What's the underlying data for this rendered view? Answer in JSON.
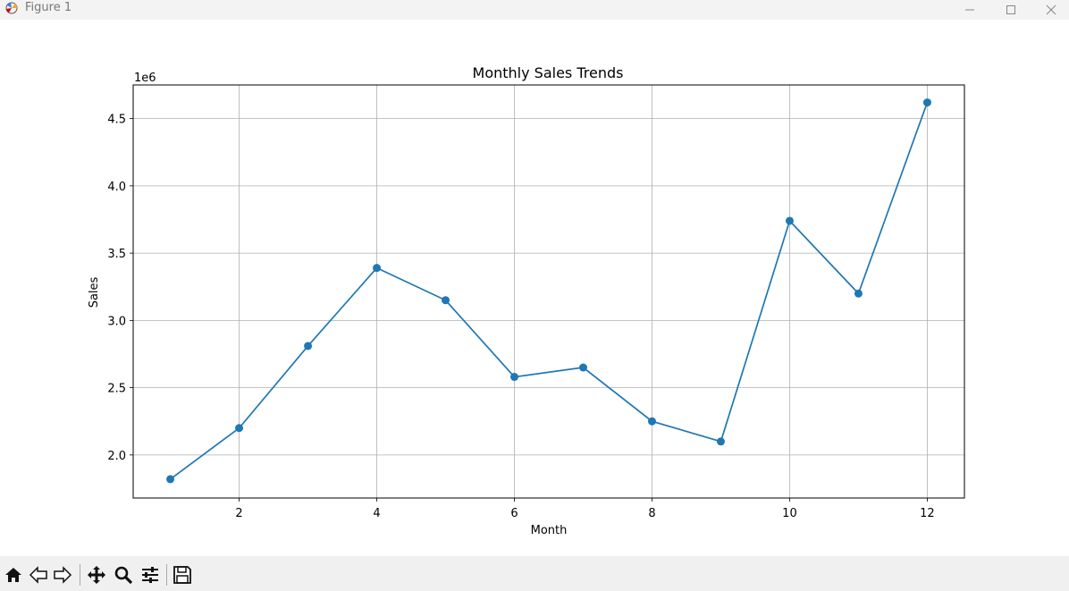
{
  "window": {
    "title": "Figure 1",
    "app_icon": "matplotlib-logo-icon",
    "controls": [
      "minimize-icon",
      "maximize-icon",
      "close-icon"
    ]
  },
  "toolbar": {
    "buttons": [
      "home-icon",
      "back-arrow-icon",
      "forward-arrow-icon",
      "pan-icon",
      "zoom-icon",
      "configure-subplots-icon",
      "save-icon"
    ]
  },
  "chart_data": {
    "type": "line",
    "title": "Monthly Sales Trends",
    "xlabel": "Month",
    "ylabel": "Sales",
    "offset_text": "1e6",
    "x": [
      1,
      2,
      3,
      4,
      5,
      6,
      7,
      8,
      9,
      10,
      11,
      12
    ],
    "series": [
      {
        "values": [
          1820000,
          2200000,
          2810000,
          3390000,
          3150000,
          2580000,
          2650000,
          2250000,
          2100000,
          3740000,
          3200000,
          4620000
        ],
        "color": "#1f77b4",
        "marker": "circle"
      }
    ],
    "xticks": [
      2,
      4,
      6,
      8,
      10,
      12
    ],
    "xtick_labels": [
      "2",
      "4",
      "6",
      "8",
      "10",
      "12"
    ],
    "yticks": [
      2000000,
      2500000,
      3000000,
      3500000,
      4000000,
      4500000
    ],
    "ytick_labels": [
      "2.0",
      "2.5",
      "3.0",
      "3.5",
      "4.0",
      "4.5"
    ],
    "xlim": [
      0.46,
      12.54
    ],
    "ylim": [
      1680000,
      4750000
    ],
    "grid": true
  }
}
